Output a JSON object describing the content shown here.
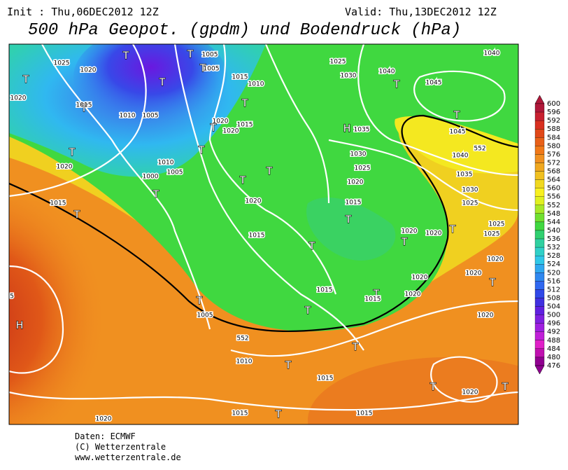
{
  "header": {
    "init": "Init : Thu,06DEC2012 12Z",
    "valid": "Valid: Thu,13DEC2012 12Z",
    "title": "500 hPa Geopot. (gpdm) und Bodendruck (hPa)"
  },
  "map": {
    "labels": [
      "1025",
      "1020",
      "T",
      "1020",
      "1015",
      "T",
      "1010",
      "1005",
      "T",
      "T",
      "1005",
      "1005",
      "T",
      "1015",
      "1010",
      "T",
      "1020",
      "1015",
      "1020",
      "T",
      "T",
      "1010",
      "1005",
      "1000",
      "T",
      "T",
      "T",
      "1020",
      "T",
      "T",
      "1015",
      "T",
      "1020",
      "1015",
      "1025",
      "1030",
      "1040",
      "T",
      "1040",
      "1045",
      "T",
      "1045",
      "H",
      "1035",
      "1030",
      "1025",
      "1020",
      "1040",
      "1035",
      "1030",
      "1025",
      "552",
      "1015",
      "T",
      "T",
      "1020",
      "1020",
      "T",
      "T",
      "1025",
      "1025",
      "1020",
      "1020",
      "T",
      "1020",
      "1020",
      "1015",
      "T",
      "T",
      "1015",
      "1020",
      "T",
      "1005",
      "552",
      "H",
      "5",
      "1010",
      "T",
      "T",
      "1015",
      "T",
      "1020",
      "T",
      "1015",
      "T",
      "1015",
      "1020"
    ]
  },
  "colorbar": {
    "labels": [
      600,
      596,
      592,
      588,
      584,
      580,
      576,
      572,
      568,
      564,
      560,
      556,
      552,
      548,
      544,
      540,
      536,
      532,
      528,
      524,
      520,
      516,
      512,
      508,
      504,
      500,
      496,
      492,
      488,
      484,
      480,
      476
    ],
    "colors": [
      "#b0183a",
      "#c82030",
      "#d83020",
      "#e04818",
      "#e86018",
      "#f07818",
      "#f09020",
      "#f0a820",
      "#f0c020",
      "#f0d820",
      "#f8f020",
      "#e0f020",
      "#a8e828",
      "#70e030",
      "#40d840",
      "#30d070",
      "#30d0a0",
      "#30d0c8",
      "#30c8e8",
      "#30a8f0",
      "#3088f0",
      "#3068f0",
      "#3048e8",
      "#4030e0",
      "#6020e0",
      "#8020e0",
      "#a020e0",
      "#c020d8",
      "#e020c8",
      "#c010b0",
      "#900090"
    ]
  },
  "footer": {
    "lines": [
      "Daten: ECMWF",
      "(C) Wetterzentrale",
      "www.wetterzentrale.de"
    ]
  }
}
